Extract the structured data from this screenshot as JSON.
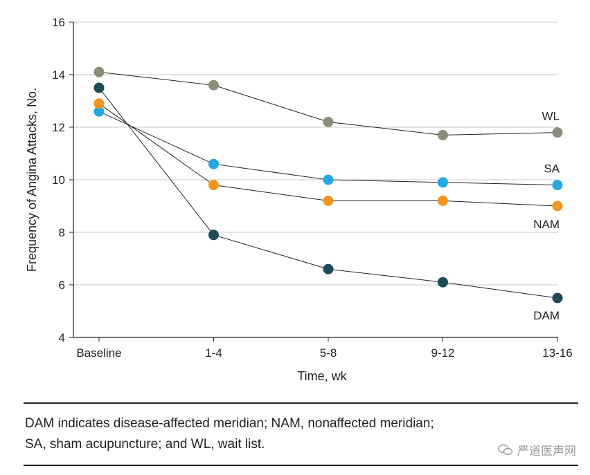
{
  "chart_data": {
    "type": "line",
    "categories": [
      "Baseline",
      "1-4",
      "5-8",
      "9-12",
      "13-16"
    ],
    "xlabel": "Time, wk",
    "ylabel": "Frequency of Angina Attacks, No.",
    "ylim": [
      4,
      16
    ],
    "yticks": [
      4,
      6,
      8,
      10,
      12,
      14,
      16
    ],
    "grid": true,
    "series": [
      {
        "name": "WL",
        "color": "#8c8b7c",
        "values": [
          14.1,
          13.6,
          12.2,
          11.7,
          11.8
        ]
      },
      {
        "name": "SA",
        "color": "#23a9e1",
        "values": [
          12.6,
          10.6,
          10.0,
          9.9,
          9.8
        ]
      },
      {
        "name": "NAM",
        "color": "#f0951e",
        "values": [
          12.9,
          9.8,
          9.2,
          9.2,
          9.0
        ]
      },
      {
        "name": "DAM",
        "color": "#1b4b57",
        "values": [
          13.5,
          7.9,
          6.6,
          6.1,
          5.5
        ]
      }
    ]
  },
  "caption": {
    "line1": "DAM indicates disease-affected meridian; NAM, nonaffected meridian;",
    "line2": "SA, sham acupuncture; and WL, wait list."
  },
  "watermark": {
    "text": "严道医声网"
  }
}
